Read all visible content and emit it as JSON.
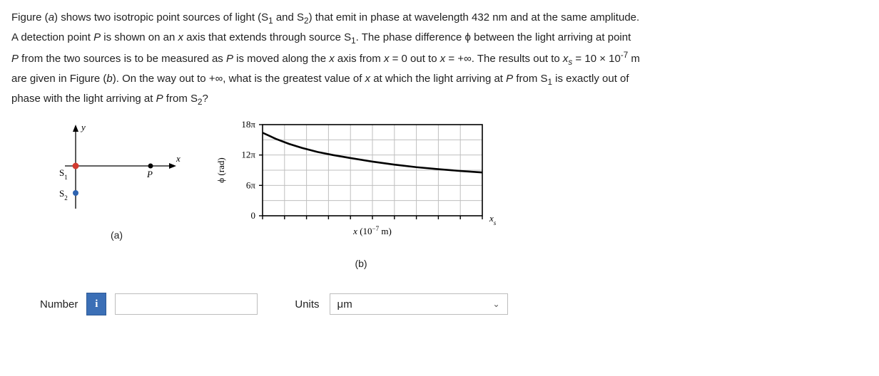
{
  "problem": {
    "line1_a": "Figure (",
    "line1_b": ") shows two isotropic point sources of light (S",
    "line1_c": " and S",
    "line1_d": ") that emit in phase at wavelength 432 nm and at the same amplitude.",
    "line2_a": "A detection point ",
    "line2_b": " is shown on an ",
    "line2_c": " axis that extends through source S",
    "line2_d": ". The phase difference ϕ between the light arriving at point",
    "line3_a": " from the two sources is to be measured as ",
    "line3_b": " is moved along the ",
    "line3_c": " axis from ",
    "line3_d": " = 0 out to ",
    "line3_e": " = +∞. The results out to ",
    "line3_f": " = 10 × 10",
    "line3_g": " m",
    "line4_a": "are given in Figure (",
    "line4_b": "). On the way out to +∞, what is the greatest value of ",
    "line4_c": " at which the light arriving at ",
    "line4_d": " from S",
    "line4_e": " is exactly out of",
    "line5_a": "phase with the light arriving at ",
    "line5_b": " from S",
    "line5_c": "?",
    "i_a": "a",
    "i_b": "b",
    "i_P": "P",
    "i_x": "x",
    "i_xs": "x",
    "sub_s": "s",
    "sub1": "1",
    "sub2": "2",
    "sup_m7": "-7"
  },
  "figA": {
    "label": "(a)",
    "y_label": "y",
    "x_label": "x",
    "S1": "S",
    "S1_sub": "1",
    "S2": "S",
    "S2_sub": "2",
    "P": "P",
    "colors": {
      "axis": "#000000",
      "s1_fill": "#d23a2f",
      "s2_fill": "#2e63b0",
      "p_fill": "#000000"
    }
  },
  "figB": {
    "label": "(b)",
    "y_axis_label": "ϕ (rad)",
    "x_axis_label_a": "x",
    "x_axis_label_b": " (10",
    "x_axis_label_c": " m)",
    "x_sup": "−7",
    "x_end_label": "x",
    "x_end_sub": "s",
    "y_ticks": [
      "0",
      "6π",
      "12π",
      "18π"
    ],
    "ylim": [
      0,
      18
    ],
    "ytick_step_pi": 6,
    "xlim": [
      0,
      10
    ],
    "xtick_step": 1,
    "grid_color": "#bfbfbf",
    "frame_color": "#000000",
    "curve_color": "#000000",
    "curve_points": [
      [
        0.0,
        16.4
      ],
      [
        0.6,
        15.2
      ],
      [
        1.2,
        14.2
      ],
      [
        1.8,
        13.4
      ],
      [
        2.5,
        12.6
      ],
      [
        3.2,
        12.0
      ],
      [
        4.0,
        11.4
      ],
      [
        5.0,
        10.7
      ],
      [
        6.0,
        10.1
      ],
      [
        7.0,
        9.6
      ],
      [
        8.0,
        9.2
      ],
      [
        9.0,
        8.85
      ],
      [
        10.0,
        8.55
      ]
    ],
    "line_width": 2.6
  },
  "answer": {
    "number_label": "Number",
    "info_glyph": "i",
    "number_value": "",
    "units_label": "Units",
    "unit_selected": "μm",
    "chevron": "⌄"
  }
}
